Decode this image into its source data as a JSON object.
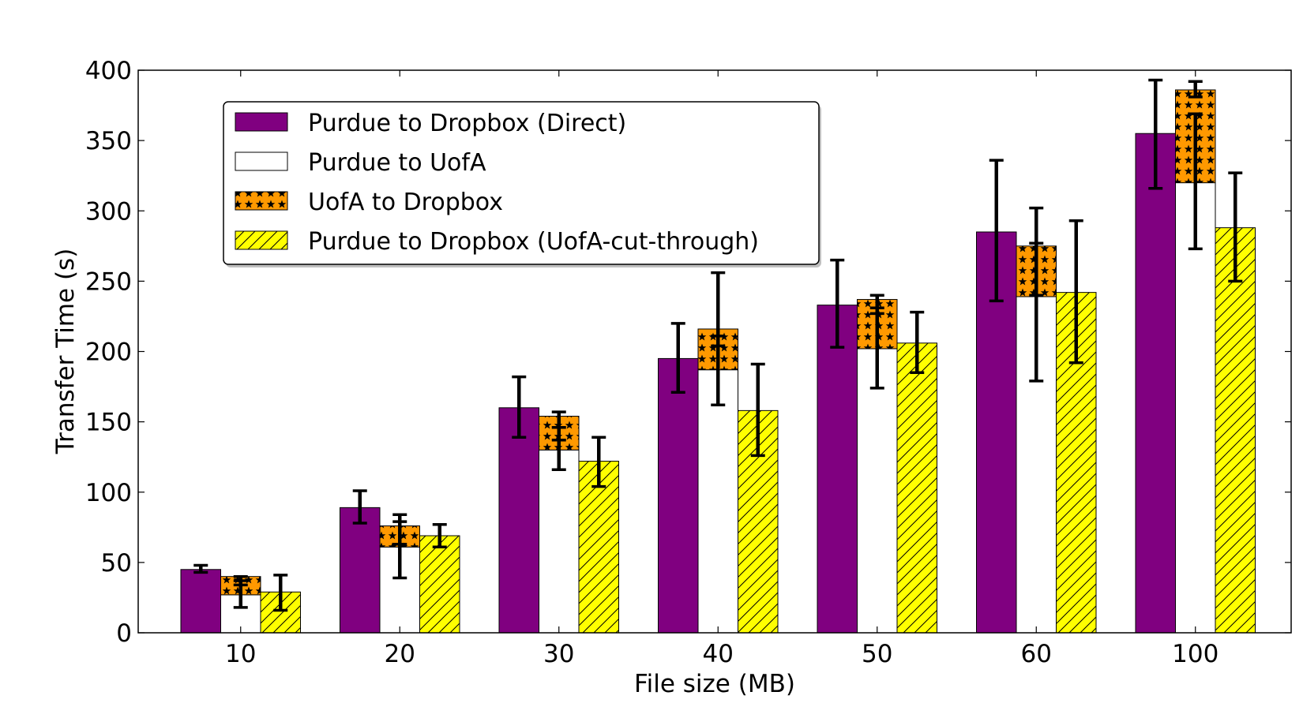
{
  "chart_data": {
    "type": "bar",
    "xlabel": "File size (MB)",
    "ylabel": "Transfer Time (s)",
    "ylim": [
      0,
      400
    ],
    "yticks": [
      0,
      50,
      100,
      150,
      200,
      250,
      300,
      350,
      400
    ],
    "categories": [
      "10",
      "20",
      "30",
      "40",
      "50",
      "60",
      "100"
    ],
    "grid": false,
    "legend_position": "top-left",
    "series": [
      {
        "name": "Purdue to Dropbox (Direct)",
        "color": "#800080",
        "pattern": "solid",
        "values": [
          45,
          89,
          160,
          195,
          233,
          285,
          355
        ],
        "err_low": [
          43,
          78,
          139,
          171,
          203,
          236,
          316
        ],
        "err_high": [
          48,
          101,
          182,
          220,
          265,
          336,
          393
        ]
      },
      {
        "name": "Purdue to UofA",
        "color": "#ffffff",
        "pattern": "solid",
        "stacked_group": "relay",
        "values": [
          27,
          61,
          130,
          187,
          202,
          239,
          320
        ],
        "err_low": [
          18,
          39,
          116,
          162,
          174,
          179,
          273
        ],
        "err_high": [
          37,
          84,
          146,
          211,
          231,
          277,
          369
        ]
      },
      {
        "name": "UofA to Dropbox",
        "color": "#ff9900",
        "pattern": "stars",
        "stacked_group": "relay",
        "values": [
          13,
          15,
          24,
          29,
          35,
          36,
          66
        ],
        "err_low": [
          34,
          63,
          137,
          204,
          227,
          240,
          381
        ],
        "err_high": [
          40,
          79,
          157,
          256,
          240,
          302,
          392
        ]
      },
      {
        "name": "Purdue to Dropbox (UofA-cut-through)",
        "color": "#ffff00",
        "pattern": "hatch",
        "values": [
          29,
          69,
          122,
          158,
          206,
          242,
          288
        ],
        "err_low": [
          16,
          61,
          104,
          126,
          185,
          192,
          250
        ],
        "err_high": [
          41,
          77,
          139,
          191,
          228,
          293,
          327
        ]
      }
    ]
  }
}
